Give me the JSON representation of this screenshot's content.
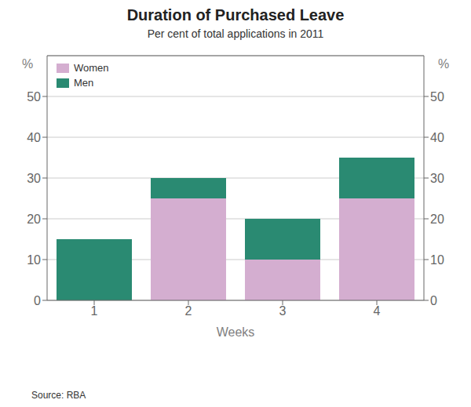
{
  "chart_data": {
    "type": "bar",
    "title": "Duration of Purchased Leave",
    "subtitle": "Per cent of total applications in 2011",
    "xlabel": "Weeks",
    "ylabel": "%",
    "y2label": "%",
    "categories": [
      1,
      2,
      3,
      4
    ],
    "series": [
      {
        "name": "Women",
        "color": "#d4aed0",
        "values": [
          0,
          25,
          10,
          25
        ]
      },
      {
        "name": "Men",
        "color": "#2a8a72",
        "values": [
          15,
          5,
          10,
          10
        ]
      }
    ],
    "stacked": true,
    "ylim": [
      0,
      60
    ],
    "yticks": [
      0,
      10,
      20,
      30,
      40,
      50
    ],
    "y2lim": [
      0,
      60
    ],
    "y2ticks": [
      0,
      10,
      20,
      30,
      40,
      50
    ],
    "grid": true,
    "legend": "upper left",
    "annotations": [
      "Source: RBA"
    ]
  }
}
